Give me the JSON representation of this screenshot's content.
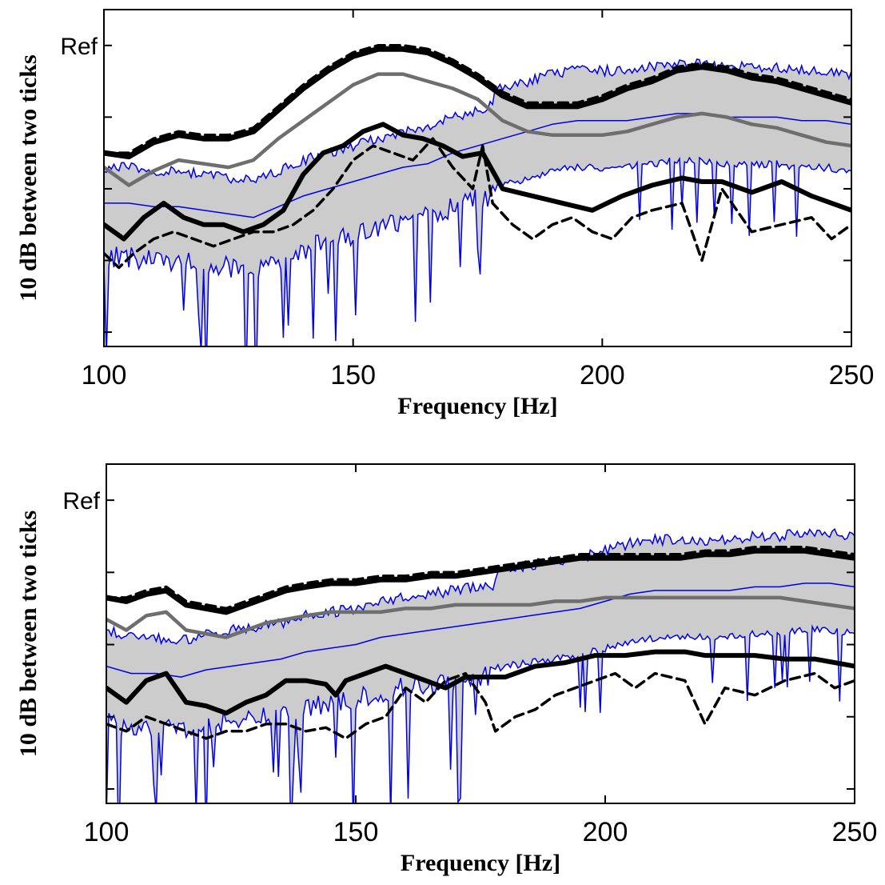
{
  "chart_data": [
    {
      "type": "line",
      "xlabel": "Frequency [Hz]",
      "ylabel": "10 dB between two ticks",
      "xlim": [
        100,
        250
      ],
      "ylim": [
        -42,
        5
      ],
      "xticks": [
        100,
        150,
        200,
        250
      ],
      "xtick_labels": [
        "100",
        "150",
        "200",
        "250"
      ],
      "yticks": [
        -40,
        -30,
        -20,
        -10,
        0
      ],
      "ref_label": "Ref",
      "ref_value": 0,
      "colors": {
        "thick": "#000000",
        "dashed": "#000000",
        "gray": "#6e6e6e",
        "blue": "#0000e6",
        "fill": "#cccccc"
      },
      "series": [
        {
          "x": [
            100,
            105,
            110,
            115,
            120,
            125,
            130,
            135,
            140,
            145,
            150,
            155,
            160,
            165,
            170,
            175,
            180,
            185,
            190,
            195,
            200,
            205,
            210,
            215,
            220,
            225,
            230,
            235,
            240,
            245,
            250
          ],
          "values": [
            -15,
            -15.5,
            -13.5,
            -12.5,
            -13,
            -13,
            -12,
            -9,
            -6,
            -3.5,
            -1.5,
            -0.5,
            -0.5,
            -1,
            -2.5,
            -4.5,
            -7,
            -8.5,
            -8.5,
            -8.5,
            -7.5,
            -6,
            -5,
            -3.5,
            -3,
            -3.5,
            -4.5,
            -5,
            -6,
            -7,
            -8
          ]
        },
        {
          "x": [
            100,
            105,
            110,
            115,
            120,
            125,
            130,
            135,
            140,
            145,
            150,
            155,
            160,
            165,
            170,
            175,
            180,
            185,
            190,
            195,
            200,
            205,
            210,
            215,
            220,
            225,
            230,
            235,
            240,
            245,
            250
          ],
          "values": [
            -15,
            -15,
            -13,
            -12,
            -12.5,
            -12.5,
            -11.5,
            -8.5,
            -5.5,
            -3,
            -1,
            0,
            0,
            -0.5,
            -2,
            -4,
            -6.5,
            -8,
            -8,
            -8,
            -7,
            -5.5,
            -4.5,
            -3,
            -2.5,
            -3,
            -4,
            -4.5,
            -5.5,
            -6.5,
            -7.5
          ]
        },
        {
          "x": [
            100,
            105,
            110,
            115,
            120,
            125,
            130,
            135,
            140,
            145,
            150,
            155,
            160,
            165,
            170,
            175,
            180,
            185,
            190,
            195,
            200,
            205,
            210,
            215,
            220,
            225,
            230,
            235,
            240,
            245,
            250
          ],
          "values": [
            -17,
            -19.5,
            -17.5,
            -16,
            -16.5,
            -17,
            -16,
            -13,
            -10.5,
            -8,
            -5.5,
            -4,
            -4,
            -5,
            -6,
            -7.5,
            -10.5,
            -12,
            -12.5,
            -12.5,
            -12.5,
            -12,
            -11,
            -10,
            -9.5,
            -10,
            -11,
            -11.5,
            -12.5,
            -13.5,
            -14
          ]
        },
        {
          "x": [
            100,
            104,
            108,
            112,
            116,
            120,
            124,
            128,
            132,
            136,
            140,
            144,
            148,
            152,
            156,
            160,
            164,
            168,
            172,
            176,
            180,
            186,
            192,
            198,
            204,
            210,
            216,
            220,
            224,
            230,
            236,
            242,
            250
          ],
          "values": [
            -25,
            -27,
            -24,
            -22,
            -24,
            -25,
            -25,
            -26,
            -25,
            -23,
            -18,
            -15,
            -14,
            -12,
            -11,
            -12.5,
            -13,
            -14,
            -15.5,
            -15,
            -20,
            -21,
            -22,
            -23,
            -21,
            -19.5,
            -18.5,
            -19,
            -19,
            -20.5,
            -19,
            -21,
            -23
          ]
        },
        {
          "x": [
            100,
            103,
            106,
            110,
            114,
            118,
            122,
            126,
            130,
            134,
            138,
            142,
            146,
            150,
            154,
            158,
            162,
            166,
            170,
            174,
            176,
            178,
            182,
            186,
            190,
            194,
            198,
            202,
            206,
            210,
            216,
            220,
            224,
            230,
            236,
            242,
            246,
            250
          ],
          "values": [
            -29,
            -31,
            -29,
            -27,
            -26,
            -27,
            -28,
            -27,
            -26,
            -26,
            -25,
            -23,
            -20,
            -16,
            -14,
            -15,
            -16,
            -13,
            -17,
            -20,
            -14,
            -22,
            -25,
            -27,
            -25,
            -24,
            -26,
            -27,
            -24,
            -23,
            -22,
            -30,
            -20,
            -26,
            -25,
            -24,
            -27,
            -25
          ]
        },
        {
          "x": [
            100,
            105,
            110,
            115,
            120,
            125,
            130,
            135,
            140,
            145,
            150,
            155,
            160,
            165,
            170,
            175,
            180,
            185,
            190,
            195,
            200,
            205,
            210,
            215,
            220,
            225,
            230,
            235,
            240,
            245,
            250
          ],
          "values": [
            -22,
            -22,
            -22.5,
            -22.5,
            -23,
            -23.5,
            -24,
            -22.5,
            -21,
            -20,
            -19,
            -18,
            -17,
            -16.5,
            -15,
            -14,
            -13,
            -12,
            -11,
            -10.5,
            -10.5,
            -10.5,
            -10,
            -9.5,
            -9.5,
            -10,
            -10,
            -10,
            -10.5,
            -10.5,
            -11
          ]
        }
      ]
    },
    {
      "type": "line",
      "xlabel": "Frequency [Hz]",
      "ylabel": "10 dB between two ticks",
      "xlim": [
        100,
        250
      ],
      "ylim": [
        -42,
        5
      ],
      "xticks": [
        100,
        150,
        200,
        250
      ],
      "xtick_labels": [
        "100",
        "150",
        "200",
        "250"
      ],
      "yticks": [
        -40,
        -30,
        -20,
        -10,
        0
      ],
      "ref_label": "Ref",
      "ref_value": 0,
      "colors": {
        "thick": "#000000",
        "dashed": "#000000",
        "gray": "#6e6e6e",
        "blue": "#0000e6",
        "fill": "#cccccc"
      },
      "series": [
        {
          "x": [
            100,
            104,
            108,
            112,
            116,
            120,
            124,
            128,
            132,
            136,
            140,
            145,
            150,
            155,
            160,
            165,
            170,
            175,
            180,
            185,
            190,
            195,
            200,
            205,
            210,
            215,
            220,
            225,
            230,
            235,
            240,
            245,
            250
          ],
          "values": [
            -13.5,
            -14,
            -13,
            -12.5,
            -14.5,
            -15,
            -15.5,
            -14.5,
            -13.5,
            -12.5,
            -12,
            -11.5,
            -11.5,
            -11,
            -11,
            -10.5,
            -10.5,
            -10,
            -9.5,
            -9,
            -8.5,
            -8,
            -8,
            -8,
            -8,
            -8,
            -7.5,
            -7.5,
            -7,
            -7,
            -7,
            -7.5,
            -8
          ]
        },
        {
          "x": [
            100,
            104,
            108,
            112,
            116,
            120,
            124,
            128,
            132,
            136,
            140,
            145,
            150,
            155,
            160,
            165,
            170,
            175,
            180,
            185,
            190,
            195,
            200,
            205,
            210,
            215,
            220,
            225,
            230,
            235,
            240,
            245,
            250
          ],
          "values": [
            -13.5,
            -13.5,
            -12.5,
            -12,
            -14,
            -14.5,
            -15,
            -14,
            -13,
            -12,
            -11.5,
            -11,
            -11,
            -10.5,
            -10.5,
            -10,
            -10,
            -9.5,
            -9,
            -8.5,
            -8,
            -7.5,
            -7.5,
            -7.5,
            -7.5,
            -7.5,
            -7,
            -7,
            -6.5,
            -6.5,
            -6.5,
            -7,
            -7.5
          ]
        },
        {
          "x": [
            100,
            104,
            108,
            112,
            116,
            120,
            124,
            128,
            132,
            136,
            140,
            145,
            150,
            155,
            160,
            165,
            170,
            175,
            180,
            185,
            190,
            195,
            200,
            205,
            210,
            215,
            220,
            225,
            230,
            235,
            240,
            245,
            250
          ],
          "values": [
            -16.5,
            -18,
            -16,
            -15.5,
            -18,
            -18.5,
            -19,
            -18,
            -17,
            -16.5,
            -16,
            -15.5,
            -15.5,
            -15.5,
            -15,
            -15,
            -14.5,
            -14.5,
            -14.5,
            -14.5,
            -14,
            -14,
            -13.5,
            -13.5,
            -13.5,
            -13.5,
            -13.5,
            -13.5,
            -13.5,
            -13.5,
            -14,
            -14.5,
            -15
          ]
        },
        {
          "x": [
            100,
            104,
            108,
            112,
            116,
            120,
            124,
            128,
            132,
            136,
            140,
            144,
            146,
            148,
            152,
            156,
            160,
            164,
            168,
            172,
            176,
            180,
            186,
            192,
            198,
            204,
            210,
            216,
            220,
            224,
            230,
            236,
            242,
            250
          ],
          "values": [
            -26,
            -28,
            -25,
            -24,
            -28,
            -28.5,
            -29.5,
            -28,
            -27,
            -25,
            -25,
            -25.5,
            -27,
            -25,
            -24,
            -23,
            -24,
            -25,
            -26,
            -24.5,
            -24.5,
            -24.5,
            -23,
            -22.5,
            -21.5,
            -21.5,
            -21,
            -21,
            -21.5,
            -21.5,
            -21.5,
            -22,
            -22,
            -23
          ]
        },
        {
          "x": [
            100,
            104,
            108,
            112,
            116,
            120,
            124,
            128,
            132,
            136,
            140,
            144,
            148,
            152,
            156,
            160,
            164,
            168,
            172,
            176,
            178,
            182,
            186,
            190,
            194,
            198,
            202,
            206,
            210,
            216,
            220,
            224,
            230,
            236,
            242,
            246,
            250
          ],
          "values": [
            -31,
            -32,
            -30,
            -31,
            -32,
            -33,
            -32,
            -32,
            -31,
            -31,
            -32,
            -31.5,
            -33,
            -31,
            -30,
            -26,
            -28,
            -25,
            -24,
            -28,
            -32,
            -30,
            -29,
            -27,
            -26,
            -25,
            -24,
            -26,
            -24,
            -25,
            -31,
            -26,
            -27,
            -25,
            -24,
            -26,
            -25
          ]
        },
        {
          "x": [
            100,
            105,
            110,
            115,
            120,
            125,
            130,
            135,
            140,
            145,
            150,
            155,
            160,
            165,
            170,
            175,
            180,
            185,
            190,
            195,
            200,
            205,
            210,
            215,
            220,
            225,
            230,
            235,
            240,
            245,
            250
          ],
          "values": [
            -23,
            -24,
            -24,
            -24.5,
            -23.5,
            -23,
            -22.5,
            -22,
            -21,
            -20.5,
            -20,
            -19,
            -18.5,
            -18,
            -17.5,
            -17,
            -16.5,
            -16,
            -15.5,
            -15,
            -14,
            -13,
            -12.5,
            -12.5,
            -12.5,
            -12.5,
            -12,
            -12,
            -11.5,
            -11.5,
            -12
          ]
        }
      ]
    }
  ]
}
